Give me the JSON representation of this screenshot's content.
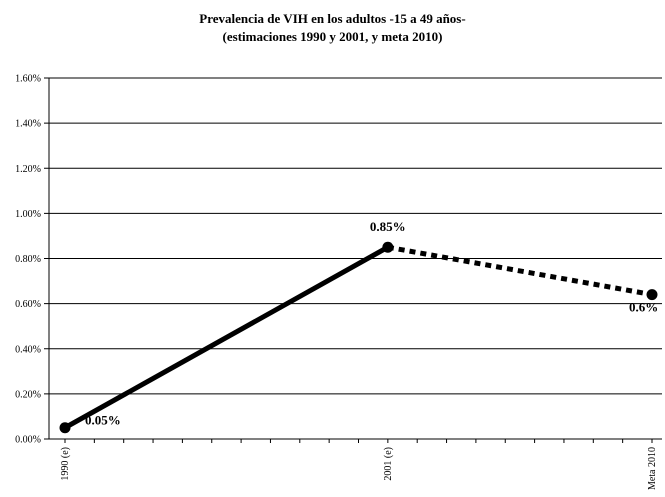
{
  "chart_data": {
    "type": "line",
    "title": [
      "Prevalencia de VIH en los adultos -15 a 49 años-",
      "(estimaciones 1990 y 2001, y meta 2010)"
    ],
    "xlabel": "",
    "ylabel": "",
    "categories": [
      "1990 (e)",
      "2001 (e)",
      "Meta 2010"
    ],
    "x_years": [
      1990,
      2001,
      2010
    ],
    "y_ticks": [
      "0.00%",
      "0.20%",
      "0.40%",
      "0.60%",
      "0.80%",
      "1.00%",
      "1.20%",
      "1.40%",
      "1.60%"
    ],
    "ylim": [
      0,
      1.6
    ],
    "grid": true,
    "legend": "none",
    "series": [
      {
        "values": [
          0.05,
          0.85,
          0.64
        ],
        "segment_styles": [
          "solid",
          "dotted"
        ],
        "data_labels": [
          "0.05%",
          "0.85%",
          "0.6%"
        ],
        "color": "#000000"
      }
    ]
  }
}
